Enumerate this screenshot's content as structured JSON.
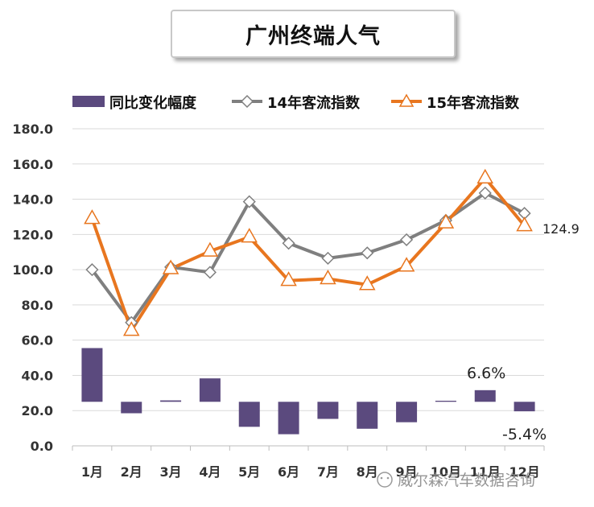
{
  "chart_data": {
    "type": "bar+line",
    "title": "广州终端人气",
    "categories": [
      "1月",
      "2月",
      "3月",
      "4月",
      "5月",
      "6月",
      "7月",
      "8月",
      "9月",
      "10月",
      "11月",
      "12月"
    ],
    "ylim": [
      0,
      180
    ],
    "yticks": [
      "180.0",
      "160.0",
      "140.0",
      "120.0",
      "100.0",
      "80.0",
      "60.0",
      "40.0",
      "20.0",
      "0.0"
    ],
    "bar_baseline": 25,
    "series": [
      {
        "name": "同比变化幅度",
        "kind": "bar",
        "color": "#5b4a7e",
        "values": [
          55.5,
          18.5,
          25.8,
          38.3,
          10.8,
          6.6,
          15.3,
          9.7,
          13.4,
          25.6,
          31.6,
          19.6
        ]
      },
      {
        "name": "14年客流指数",
        "kind": "line",
        "marker": "diamond",
        "color": "#7f7f7f",
        "values": [
          100.0,
          70.0,
          101.5,
          98.5,
          138.6,
          115.0,
          106.5,
          109.5,
          117.0,
          128.0,
          143.5,
          132.0
        ]
      },
      {
        "name": "15年客流指数",
        "kind": "line",
        "marker": "triangle",
        "color": "#e8761f",
        "values": [
          129.0,
          65.5,
          100.5,
          110.5,
          118.5,
          93.8,
          94.8,
          91.5,
          102.0,
          126.5,
          152.0,
          124.9
        ]
      }
    ],
    "annotations": {
      "dec_value": "124.9",
      "nov_change": "6.6%",
      "dec_change": "-5.4%"
    },
    "watermark": "威尔森汽车数据咨询"
  }
}
